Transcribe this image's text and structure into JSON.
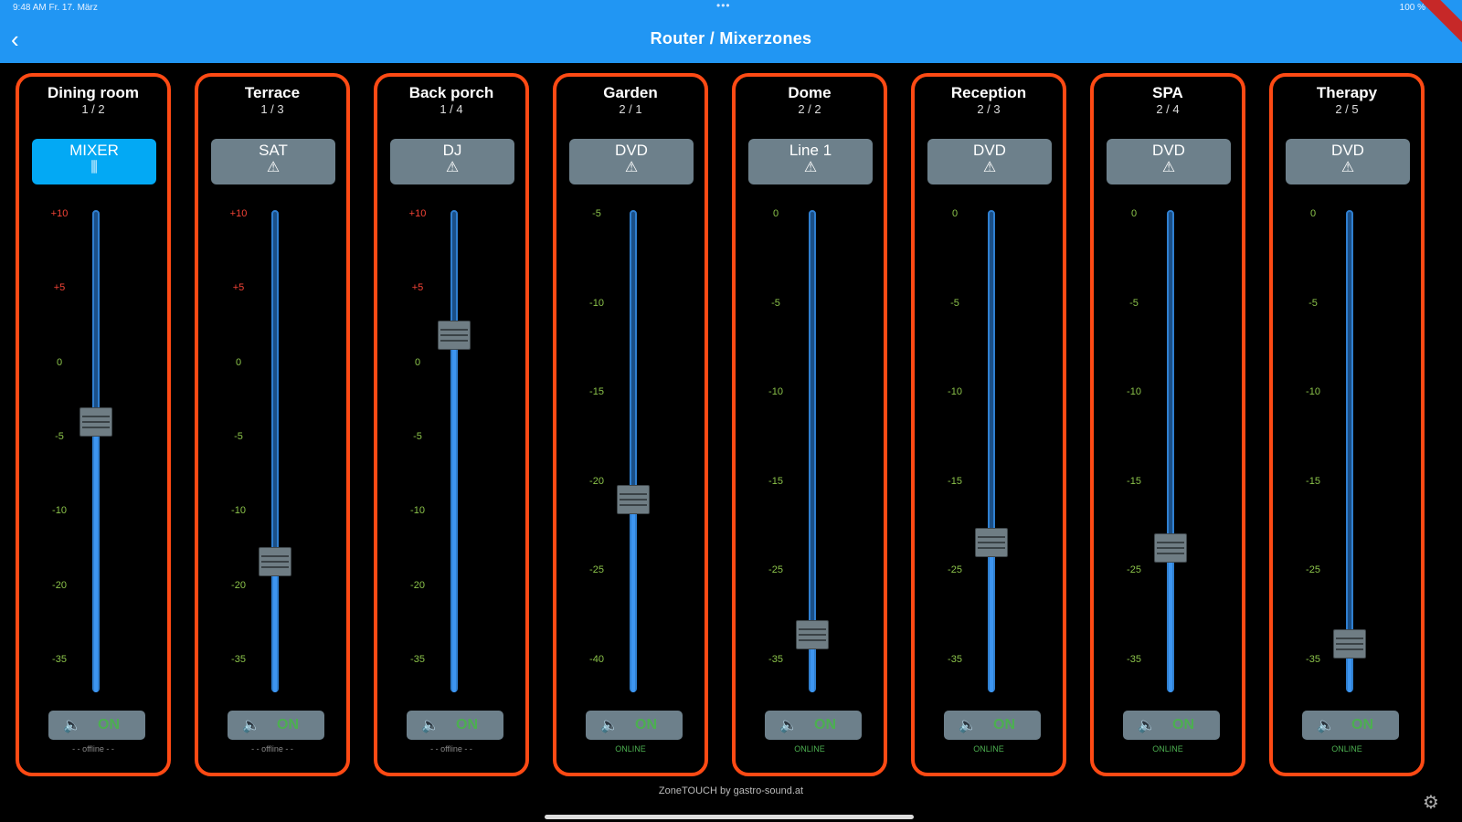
{
  "status_bar": {
    "time": "9:48 AM   Fr. 17. März",
    "dots": "•••",
    "battery": "100 %"
  },
  "header": {
    "back_icon": "chevron-left-icon",
    "title": "Router / Mixerzones"
  },
  "colors": {
    "appbar": "#2196f3",
    "zone_border": "#ff4a14",
    "active_source": "#03a9f4",
    "source": "#6d808b",
    "on_green": "#4caf50"
  },
  "zones": [
    {
      "name": "Dining room",
      "num": "1 / 2",
      "source": "MIXER",
      "source_icon": "mixer-sliders-icon",
      "active": true,
      "scale": [
        [
          "+10",
          "red"
        ],
        [
          "+5",
          "red"
        ],
        [
          "0",
          "green"
        ],
        [
          "-5",
          "green"
        ],
        [
          "-10",
          "green"
        ],
        [
          "-20",
          "green"
        ],
        [
          "-35",
          "green"
        ]
      ],
      "level": 0.44,
      "on": "ON",
      "status": "- - offline - -"
    },
    {
      "name": "Terrace",
      "num": "1 / 3",
      "source": "SAT",
      "source_icon": "warning-icon",
      "active": false,
      "scale": [
        [
          "+10",
          "red"
        ],
        [
          "+5",
          "red"
        ],
        [
          "0",
          "green"
        ],
        [
          "-5",
          "green"
        ],
        [
          "-10",
          "green"
        ],
        [
          "-20",
          "green"
        ],
        [
          "-35",
          "green"
        ]
      ],
      "level": 0.73,
      "on": "ON",
      "status": "- - offline - -"
    },
    {
      "name": "Back porch",
      "num": "1 / 4",
      "source": "DJ",
      "source_icon": "warning-icon",
      "active": false,
      "scale": [
        [
          "+10",
          "red"
        ],
        [
          "+5",
          "red"
        ],
        [
          "0",
          "green"
        ],
        [
          "-5",
          "green"
        ],
        [
          "-10",
          "green"
        ],
        [
          "-20",
          "green"
        ],
        [
          "-35",
          "green"
        ]
      ],
      "level": 0.26,
      "on": "ON",
      "status": "- - offline - -"
    },
    {
      "name": "Garden",
      "num": "2 / 1",
      "source": "DVD",
      "source_icon": "warning-icon",
      "active": false,
      "scale": [
        [
          "-5",
          "green"
        ],
        [
          "-10",
          "green"
        ],
        [
          "-15",
          "green"
        ],
        [
          "-20",
          "green"
        ],
        [
          "-25",
          "green"
        ],
        [
          "-40",
          "green"
        ]
      ],
      "level": 0.6,
      "on": "ON",
      "status": "ONLINE"
    },
    {
      "name": "Dome",
      "num": "2 / 2",
      "source": "Line 1",
      "source_icon": "warning-icon",
      "active": false,
      "scale": [
        [
          "0",
          "green"
        ],
        [
          "-5",
          "green"
        ],
        [
          "-10",
          "green"
        ],
        [
          "-15",
          "green"
        ],
        [
          "-25",
          "green"
        ],
        [
          "-35",
          "green"
        ]
      ],
      "level": 0.88,
      "on": "ON",
      "status": "ONLINE"
    },
    {
      "name": "Reception",
      "num": "2 / 3",
      "source": "DVD",
      "source_icon": "warning-icon",
      "active": false,
      "scale": [
        [
          "0",
          "green"
        ],
        [
          "-5",
          "green"
        ],
        [
          "-10",
          "green"
        ],
        [
          "-15",
          "green"
        ],
        [
          "-25",
          "green"
        ],
        [
          "-35",
          "green"
        ]
      ],
      "level": 0.69,
      "on": "ON",
      "status": "ONLINE"
    },
    {
      "name": "SPA",
      "num": "2 / 4",
      "source": "DVD",
      "source_icon": "warning-icon",
      "active": false,
      "scale": [
        [
          "0",
          "green"
        ],
        [
          "-5",
          "green"
        ],
        [
          "-10",
          "green"
        ],
        [
          "-15",
          "green"
        ],
        [
          "-25",
          "green"
        ],
        [
          "-35",
          "green"
        ]
      ],
      "level": 0.7,
      "on": "ON",
      "status": "ONLINE"
    },
    {
      "name": "Therapy",
      "num": "2 / 5",
      "source": "DVD",
      "source_icon": "warning-icon",
      "active": false,
      "scale": [
        [
          "0",
          "green"
        ],
        [
          "-5",
          "green"
        ],
        [
          "-10",
          "green"
        ],
        [
          "-15",
          "green"
        ],
        [
          "-25",
          "green"
        ],
        [
          "-35",
          "green"
        ]
      ],
      "level": 0.9,
      "on": "ON",
      "status": "ONLINE"
    }
  ],
  "footer": {
    "credit": "ZoneTOUCH by gastro-sound.at",
    "settings_icon": "gear-icon"
  }
}
